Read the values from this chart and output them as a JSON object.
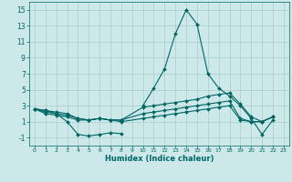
{
  "background_color": "#cce8e8",
  "grid_color": "#aacccc",
  "line_color": "#006666",
  "xlabel": "Humidex (Indice chaleur)",
  "xlim": [
    -0.5,
    23.5
  ],
  "ylim": [
    -2,
    16
  ],
  "yticks": [
    -1,
    1,
    3,
    5,
    7,
    9,
    11,
    13,
    15
  ],
  "xticks": [
    0,
    1,
    2,
    3,
    4,
    5,
    6,
    7,
    8,
    9,
    10,
    11,
    12,
    13,
    14,
    15,
    16,
    17,
    18,
    19,
    20,
    21,
    22,
    23
  ],
  "series": [
    {
      "x": [
        0,
        1,
        2,
        3,
        4,
        5,
        6,
        7,
        8,
        9,
        10,
        11,
        12,
        13,
        14,
        15,
        16,
        17,
        18,
        19,
        20,
        21,
        22
      ],
      "y": [
        2.6,
        2.4,
        2.0,
        1.0,
        -0.6,
        -0.8,
        -0.6,
        -0.4,
        -0.5,
        null,
        3.0,
        5.2,
        7.6,
        12.0,
        15.0,
        13.2,
        7.0,
        5.2,
        4.2,
        3.0,
        1.4,
        -0.6,
        1.2
      ]
    },
    {
      "x": [
        0,
        1,
        2,
        3,
        4,
        5,
        6,
        7,
        8,
        10,
        11,
        12,
        13,
        14,
        15,
        16,
        17,
        18,
        19,
        20,
        21,
        22
      ],
      "y": [
        2.6,
        2.4,
        2.2,
        2.0,
        1.4,
        1.2,
        1.4,
        1.2,
        1.2,
        2.8,
        3.0,
        3.2,
        3.4,
        3.6,
        3.8,
        4.2,
        4.4,
        4.6,
        3.2,
        1.6,
        1.0,
        1.6
      ]
    },
    {
      "x": [
        0,
        1,
        2,
        3,
        4,
        5,
        6,
        7,
        8,
        10,
        11,
        12,
        13,
        14,
        15,
        16,
        17,
        18,
        19,
        20,
        21,
        22
      ],
      "y": [
        2.6,
        2.2,
        2.0,
        1.8,
        1.4,
        1.2,
        1.4,
        1.2,
        1.2,
        2.0,
        2.2,
        2.4,
        2.6,
        2.8,
        3.0,
        3.2,
        3.4,
        3.6,
        1.4,
        1.0,
        1.0,
        1.6
      ]
    },
    {
      "x": [
        0,
        1,
        2,
        3,
        4,
        5,
        6,
        7,
        8,
        10,
        11,
        12,
        13,
        14,
        15,
        16,
        17,
        18,
        19,
        20,
        21,
        22
      ],
      "y": [
        2.6,
        2.0,
        1.8,
        1.6,
        1.2,
        1.2,
        1.4,
        1.2,
        1.0,
        1.4,
        1.6,
        1.8,
        2.0,
        2.2,
        2.4,
        2.6,
        2.8,
        3.0,
        1.2,
        1.0,
        1.0,
        1.6
      ]
    }
  ],
  "marker": "D",
  "markersize": 2.0,
  "linewidth": 0.8
}
